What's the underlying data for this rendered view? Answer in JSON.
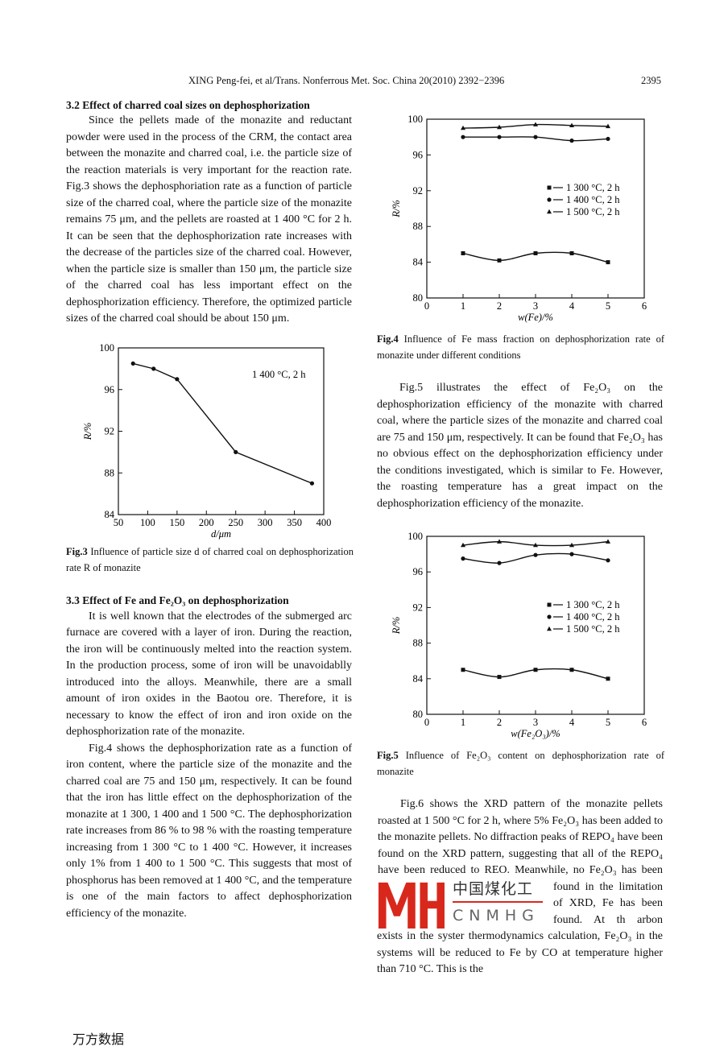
{
  "header": {
    "running_title": "XING Peng-fei, et al/Trans. Nonferrous Met. Soc. China 20(2010) 2392−2396",
    "page_number": "2395"
  },
  "left": {
    "section_32": "3.2 Effect of charred coal sizes on dephosphorization",
    "p1": "Since the pellets made of the monazite and reductant powder were used in the process of the CRM, the contact area between the monazite and charred coal, i.e. the particle size of the reaction materials is very important for the reaction rate. Fig.3 shows the dephosphoriation rate as a function of particle size of the charred coal, where the particle size of the monazite remains 75 μm, and the pellets are roasted at 1 400 °C for 2 h. It can be seen that the dephosphorization rate increases with the decrease of the particles size of the charred coal. However, when the particle size is smaller than 150 μm, the particle size of the charred coal has less important effect on the dephosphorization efficiency. Therefore, the optimized particle sizes of the charred coal should be about 150 μm.",
    "fig3_label": "Fig.3",
    "fig3_caption": "Influence of particle size d of charred coal on dephosphorization rate R of monazite",
    "section_33": "3.3 Effect of Fe and Fe₂O₃ on dephosphorization",
    "p2": "It is well known that the electrodes of the submerged arc furnace are covered with a layer of iron. During the reaction, the iron will be continuously melted into the reaction system. In the production process, some of iron will be unavoidablly introduced into the alloys. Meanwhile, there are a small amount of iron oxides in the Baotou ore. Therefore, it is necessary to know the effect of iron and iron oxide on the dephosphorization rate of the monazite.",
    "p3": "Fig.4 shows the dephosphorization rate as a function of iron content, where the particle size of the monazite and the charred coal are 75 and 150 μm, respectively. It can be found that the iron has little effect on the dephosphorization of the monazite at 1 300, 1 400 and 1 500 °C. The dephosphorization rate increases from 86 % to 98 % with the roasting temperature increasing from 1 300 °C to 1 400 °C. However, it increases only 1% from 1 400 to 1 500 °C. This suggests that most of phosphorus has been removed at 1 400 °C, and the temperature is one of the main factors to affect dephosphorization efficiency of the monazite."
  },
  "right": {
    "fig4_label": "Fig.4",
    "fig4_caption": "Influence of Fe mass fraction on dephosphorization rate of monazite under different conditions",
    "p4": "Fig.5 illustrates the effect of Fe₂O₃ on the dephosphorization efficiency of the monazite with charred coal, where the particle sizes of the monazite and charred coal are 75 and 150 μm, respectively. It can be found that Fe₂O₃ has no obvious effect on the dephosphorization efficiency under the conditions investigated, which is similar to Fe. However, the roasting temperature has a great impact on the dephosphorization efficiency of the monazite.",
    "fig5_label": "Fig.5",
    "fig5_caption": "Influence of Fe₂O₃ content on dephosphorization rate of monazite",
    "p5": "Fig.6 shows the XRD pattern of the monazite pellets roasted at 1 500 °C for 2 h, where 5% Fe₂O₃ has been added to the monazite pellets. No diffraction peaks of REPO₄ have been found on the XRD pattern, suggesting that all of the REPO₄ have been reduced to REO. Meanwhile, no Fe₂O₃ has been found in the limitation of XRD, Fe has been found. At th arbon exists in the syster thermodynamics calculation, Fe₂O₃ in the systems will be reduced to Fe by CO at temperature higher than 710 °C. This is the"
  },
  "watermark": {
    "logo": "MH",
    "chinese": "中国煤化工",
    "latin": "CNMHG",
    "color": "#d8281c"
  },
  "footer": "万方数据",
  "chart_data": [
    {
      "id": "fig3",
      "type": "line",
      "xlabel": "d/μm",
      "ylabel": "R/%",
      "xlim": [
        50,
        400
      ],
      "ylim": [
        84,
        100
      ],
      "xticks": [
        50,
        100,
        150,
        200,
        250,
        300,
        350,
        400
      ],
      "yticks": [
        84,
        88,
        92,
        96,
        100
      ],
      "grid": false,
      "annotation": "1 400 °C, 2 h",
      "series": [
        {
          "marker": "circle",
          "x": [
            75,
            110,
            150,
            250,
            380
          ],
          "y": [
            98.5,
            98,
            97,
            90,
            87
          ]
        }
      ]
    },
    {
      "id": "fig4",
      "type": "line",
      "xlabel": "w(Fe)/%",
      "ylabel": "R/%",
      "xlim": [
        0,
        6
      ],
      "ylim": [
        80,
        100
      ],
      "xticks": [
        0,
        1,
        2,
        3,
        4,
        5,
        6
      ],
      "yticks": [
        80,
        84,
        88,
        92,
        96,
        100
      ],
      "grid": false,
      "legend_placement": "right",
      "series": [
        {
          "name": "1 300 °C, 2 h",
          "marker": "square",
          "x": [
            1,
            2,
            3,
            4,
            5
          ],
          "y": [
            85,
            84.2,
            85,
            85,
            84
          ]
        },
        {
          "name": "1 400 °C, 2 h",
          "marker": "circle",
          "x": [
            1,
            2,
            3,
            4,
            5
          ],
          "y": [
            98,
            98,
            98,
            97.6,
            97.8
          ]
        },
        {
          "name": "1 500 °C, 2 h",
          "marker": "triangle",
          "x": [
            1,
            2,
            3,
            4,
            5
          ],
          "y": [
            99,
            99.1,
            99.4,
            99.3,
            99.2
          ]
        }
      ]
    },
    {
      "id": "fig5",
      "type": "line",
      "xlabel": "w(Fe₂O₃)/%",
      "ylabel": "R/%",
      "xlim": [
        0,
        6
      ],
      "ylim": [
        80,
        100
      ],
      "xticks": [
        0,
        1,
        2,
        3,
        4,
        5,
        6
      ],
      "yticks": [
        80,
        84,
        88,
        92,
        96,
        100
      ],
      "grid": false,
      "legend_placement": "right",
      "series": [
        {
          "name": "1 300 °C, 2 h",
          "marker": "square",
          "x": [
            1,
            2,
            3,
            4,
            5
          ],
          "y": [
            85,
            84.2,
            85,
            85,
            84
          ]
        },
        {
          "name": "1 400 °C, 2 h",
          "marker": "circle",
          "x": [
            1,
            2,
            3,
            4,
            5
          ],
          "y": [
            97.5,
            97,
            97.9,
            98,
            97.3
          ]
        },
        {
          "name": "1 500 °C, 2 h",
          "marker": "triangle",
          "x": [
            1,
            2,
            3,
            4,
            5
          ],
          "y": [
            99,
            99.4,
            99,
            99,
            99.4
          ]
        }
      ]
    }
  ]
}
